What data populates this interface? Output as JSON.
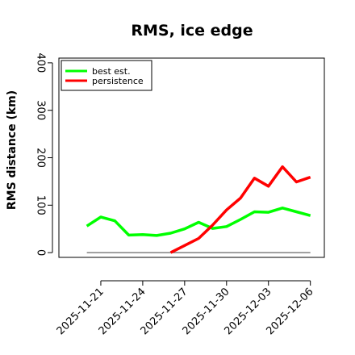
{
  "chart_data": {
    "type": "line",
    "title": "RMS, ice edge",
    "ylabel": "RMS distance (km)",
    "xlabel": "",
    "ylim": [
      -10,
      410
    ],
    "yticks": [
      0,
      100,
      200,
      300,
      400
    ],
    "xlim": [
      "2025-11-18",
      "2025-12-07"
    ],
    "xticks": [
      "2025-11-21",
      "2025-11-24",
      "2025-11-27",
      "2025-11-30",
      "2025-12-03",
      "2025-12-06"
    ],
    "grid": false,
    "legend_position": "top-left",
    "zero_line_color": "#808080",
    "series": [
      {
        "name": "best est.",
        "color": "#00ff00",
        "x": [
          "2025-11-20",
          "2025-11-21",
          "2025-11-22",
          "2025-11-23",
          "2025-11-24",
          "2025-11-25",
          "2025-11-26",
          "2025-11-27",
          "2025-11-28",
          "2025-11-29",
          "2025-11-30",
          "2025-12-01",
          "2025-12-02",
          "2025-12-03",
          "2025-12-04",
          "2025-12-05",
          "2025-12-06"
        ],
        "values": [
          56,
          75,
          67,
          37,
          38,
          36,
          41,
          50,
          64,
          51,
          55,
          70,
          86,
          85,
          94,
          86,
          78
        ]
      },
      {
        "name": "persistence",
        "color": "#ff0000",
        "x": [
          "2025-11-26",
          "2025-11-27",
          "2025-11-28",
          "2025-11-29",
          "2025-11-30",
          "2025-12-01",
          "2025-12-02",
          "2025-12-03",
          "2025-12-04",
          "2025-12-05",
          "2025-12-06"
        ],
        "values": [
          0,
          15,
          30,
          58,
          90,
          115,
          157,
          140,
          181,
          149,
          159
        ]
      }
    ]
  }
}
